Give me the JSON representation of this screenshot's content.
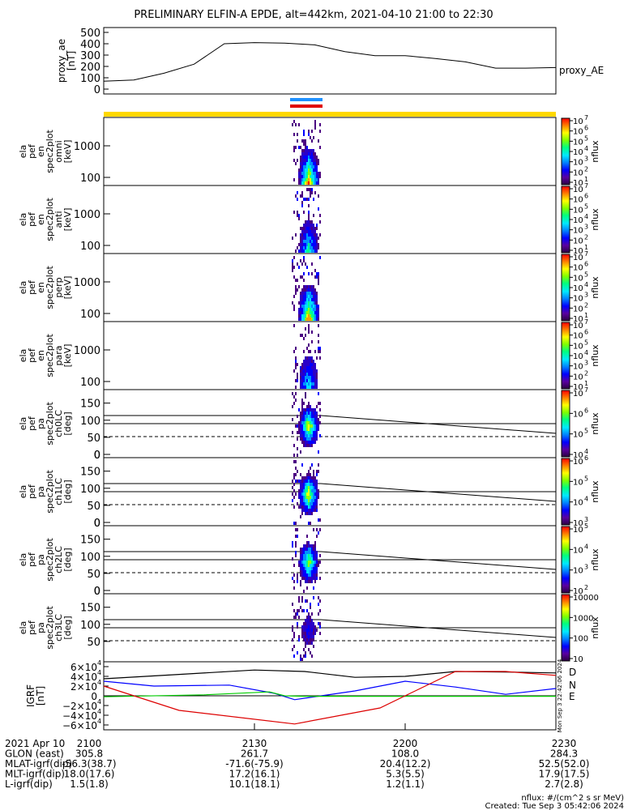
{
  "title": "PRELIMINARY ELFIN-A EPDE, alt=442km, 2021-04-10 21:00 to 22:30",
  "chart_data": [
    {
      "type": "line",
      "name": "proxy_ae",
      "ylabel": [
        "proxy_ae",
        "[nT]"
      ],
      "legend": "proxy_AE",
      "ylim": [
        0,
        500
      ],
      "yticks": [
        "0",
        "100",
        "200",
        "300",
        "400",
        "500"
      ],
      "x_min": [
        0,
        6,
        12,
        18,
        24,
        30,
        36,
        42,
        48,
        54,
        60,
        66,
        72,
        78,
        84,
        90
      ],
      "values": [
        70,
        80,
        140,
        220,
        400,
        410,
        405,
        390,
        330,
        295,
        295,
        270,
        240,
        185,
        185,
        190
      ]
    },
    {
      "type": "heatmap",
      "name": "ela_pef_en_spec2plot_omni",
      "ylabel": [
        "ela",
        "pef",
        "en",
        "spec2plot",
        "omni",
        "[keV]"
      ],
      "yticks": [
        "100",
        "1000"
      ],
      "colorbar": {
        "label": "nflux",
        "ticks": [
          "10",
          "10",
          "10",
          "10",
          "10",
          "10",
          "10"
        ],
        "exponents": [
          "7",
          "6",
          "5",
          "4",
          "3",
          "2",
          "1"
        ]
      }
    },
    {
      "type": "heatmap",
      "name": "ela_pef_en_spec2plot_anti",
      "ylabel": [
        "ela",
        "pef",
        "en",
        "spec2plot",
        "anti",
        "[keV]"
      ],
      "yticks": [
        "100",
        "1000"
      ],
      "colorbar": {
        "label": "nflux",
        "ticks": [
          "10",
          "10",
          "10",
          "10",
          "10",
          "10",
          "10"
        ],
        "exponents": [
          "7",
          "6",
          "5",
          "4",
          "3",
          "2",
          "1"
        ]
      }
    },
    {
      "type": "heatmap",
      "name": "ela_pef_en_spec2plot_perp",
      "ylabel": [
        "ela",
        "pef",
        "en",
        "spec2plot",
        "perp",
        "[keV]"
      ],
      "yticks": [
        "100",
        "1000"
      ],
      "colorbar": {
        "label": "nflux",
        "ticks": [
          "10",
          "10",
          "10",
          "10",
          "10",
          "10",
          "10"
        ],
        "exponents": [
          "7",
          "6",
          "5",
          "4",
          "3",
          "2",
          "1"
        ]
      }
    },
    {
      "type": "heatmap",
      "name": "ela_pef_en_spec2plot_para",
      "ylabel": [
        "ela",
        "pef",
        "en",
        "spec2plot",
        "para",
        "[keV]"
      ],
      "yticks": [
        "100",
        "1000"
      ],
      "colorbar": {
        "label": "nflux",
        "ticks": [
          "10",
          "10",
          "10",
          "10",
          "10",
          "10",
          "10"
        ],
        "exponents": [
          "7",
          "6",
          "5",
          "4",
          "3",
          "2",
          "1"
        ]
      }
    },
    {
      "type": "heatmap",
      "name": "ela_pef_pa_spec2plot_ch0LC",
      "ylabel": [
        "ela",
        "pef",
        "pa",
        "spec2plot",
        "ch0LC",
        "[deg]"
      ],
      "yticks": [
        "0",
        "50",
        "100",
        "150"
      ],
      "colorbar": {
        "label": "nflux",
        "ticks": [
          "10",
          "10",
          "10",
          "10"
        ],
        "exponents": [
          "7",
          "6",
          "5",
          "4"
        ]
      }
    },
    {
      "type": "heatmap",
      "name": "ela_pef_pa_spec2plot_ch1LC",
      "ylabel": [
        "ela",
        "pef",
        "pa",
        "spec2plot",
        "ch1LC",
        "[deg]"
      ],
      "yticks": [
        "0",
        "50",
        "100",
        "150"
      ],
      "colorbar": {
        "label": "nflux",
        "ticks": [
          "10",
          "10",
          "10",
          "10"
        ],
        "exponents": [
          "6",
          "5",
          "4",
          "3"
        ]
      }
    },
    {
      "type": "heatmap",
      "name": "ela_pef_pa_spec2plot_ch2LC",
      "ylabel": [
        "ela",
        "pef",
        "pa",
        "spec2plot",
        "ch2LC",
        "[deg]"
      ],
      "yticks": [
        "0",
        "50",
        "100",
        "150"
      ],
      "colorbar": {
        "label": "nflux",
        "ticks": [
          "10",
          "10",
          "10",
          "10"
        ],
        "exponents": [
          "5",
          "4",
          "3",
          "2"
        ]
      }
    },
    {
      "type": "heatmap",
      "name": "ela_pef_pa_spec2plot_ch3LC",
      "ylabel": [
        "ela",
        "pef",
        "pa",
        "spec2plot",
        "ch3LC",
        "[deg]"
      ],
      "yticks": [
        "50",
        "100",
        "150"
      ],
      "colorbar": {
        "label": "nflux",
        "ticks": [
          "10000",
          "1000",
          "100",
          "10"
        ]
      }
    },
    {
      "type": "line",
      "name": "IGRF",
      "ylabel": [
        "IGRF",
        "[nT]"
      ],
      "ylim": [
        -60000,
        60000
      ],
      "yticks": [
        "6×10",
        "4×10",
        "2×10",
        "0",
        "−2×10",
        "−4×10",
        "−6×10"
      ],
      "ytick_exp": "4",
      "series": [
        {
          "name": "D",
          "color": "#000000",
          "x_min": [
            0,
            15,
            30,
            40,
            50,
            60,
            70,
            80,
            90
          ],
          "values": [
            35000,
            44000,
            53000,
            50000,
            38000,
            40000,
            50000,
            49000,
            47000
          ]
        },
        {
          "name": "N",
          "color": "#0000ff",
          "x_min": [
            0,
            10,
            25,
            34,
            38,
            50,
            60,
            70,
            80,
            90
          ],
          "values": [
            30000,
            20000,
            22000,
            5000,
            -8000,
            10000,
            30000,
            18000,
            3000,
            15000
          ]
        },
        {
          "name": "E",
          "color": "#00cc00",
          "x_min": [
            0,
            20,
            33,
            36,
            40,
            60,
            90
          ],
          "values": [
            -2000,
            2000,
            8000,
            0,
            -1000,
            -1000,
            -1000
          ]
        },
        {
          "name": "",
          "color": "#dd0000",
          "x_min": [
            0,
            15,
            38,
            55,
            70,
            80,
            90
          ],
          "values": [
            20000,
            -30000,
            -58000,
            -25000,
            50000,
            50000,
            42000
          ]
        }
      ]
    }
  ],
  "xaxis": {
    "ticks": [
      "2100",
      "2130",
      "2200",
      "2230"
    ],
    "rows": [
      {
        "label": "2021 Apr 10",
        "values": [
          "2100",
          "2130",
          "2200",
          "2230"
        ]
      },
      {
        "label": "GLON (east)",
        "values": [
          "305.8",
          "261.7",
          "108.0",
          "284.3"
        ]
      },
      {
        "label": "MLAT-igrf(dip)",
        "values": [
          "-56.3(38.7)",
          "-71.6(-75.9)",
          "20.4(12.2)",
          "52.5(52.0)"
        ]
      },
      {
        "label": "MLT-igrf(dip)",
        "values": [
          "18.0(17.6)",
          "17.2(16.1)",
          "5.3(5.5)",
          "17.9(17.5)"
        ]
      },
      {
        "label": "L-igrf(dip)",
        "values": [
          "1.5(1.8)",
          "10.1(18.1)",
          "1.2(1.1)",
          "2.7(2.8)"
        ]
      }
    ]
  },
  "footer": {
    "units": "nflux: #/(cm^2 s sr MeV)",
    "created": "Created: Tue Sep  3 05:42:06 2024",
    "side_stamp": "Mon Sep  3 22:42:06 2024"
  }
}
